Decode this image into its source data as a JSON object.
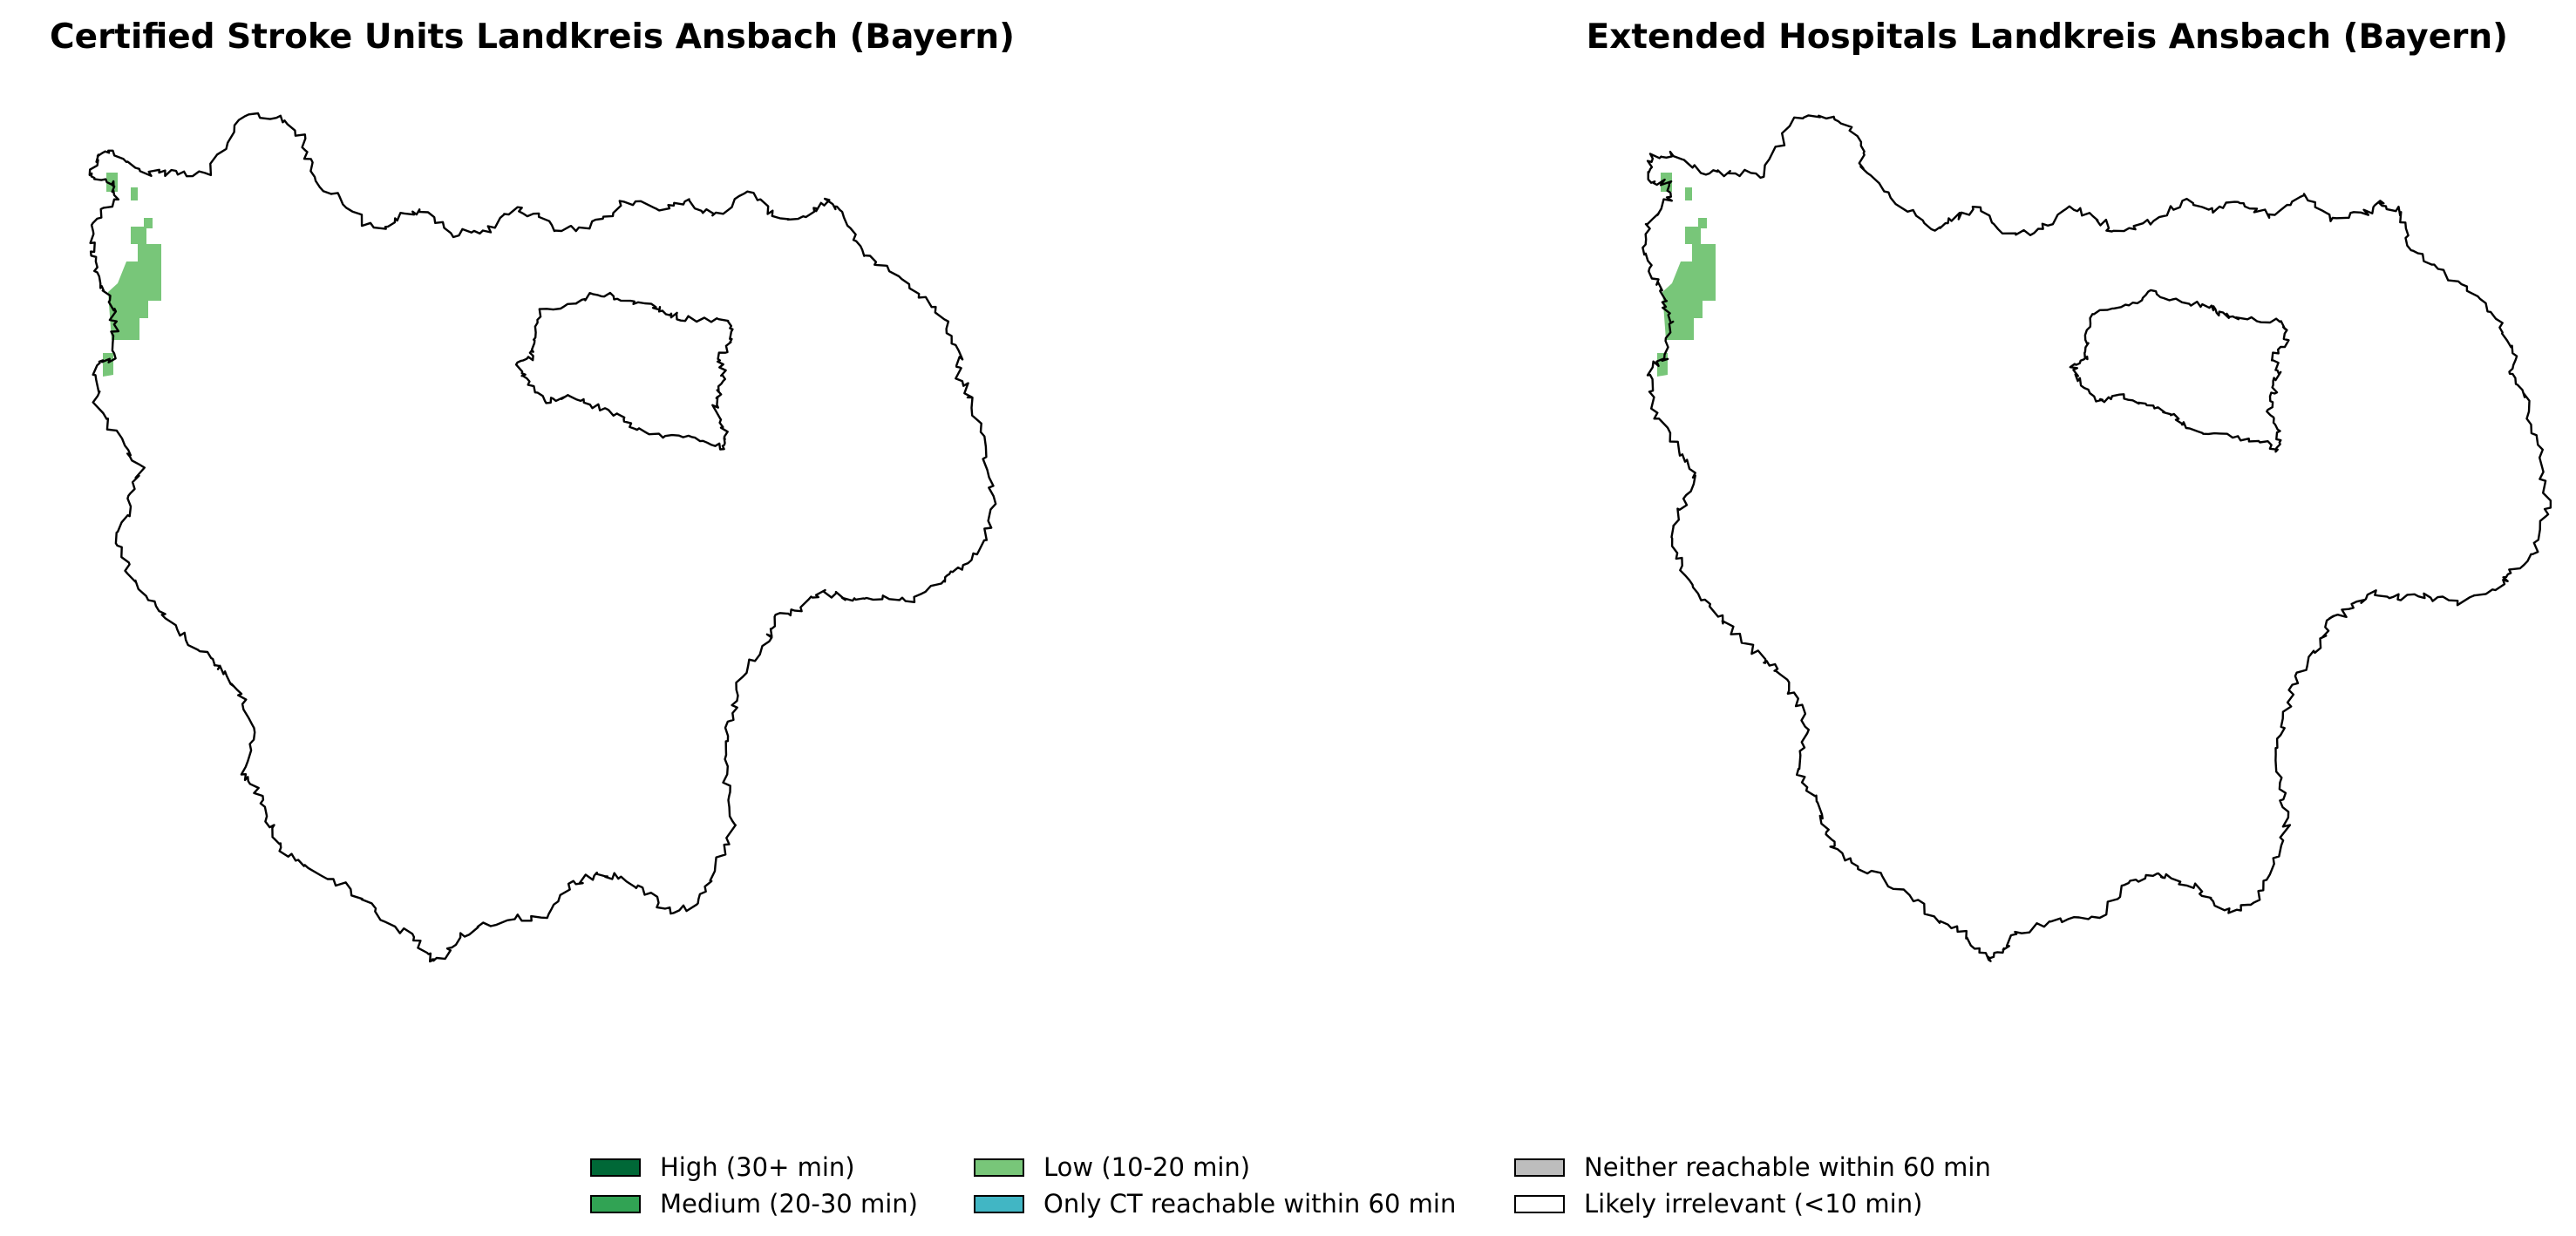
{
  "maps": [
    {
      "title": "Certified Stroke Units Landkreis Ansbach (Bayern)",
      "low_coverage_cells": [
        "nw-1",
        "nw-2",
        "nw-3",
        "nw-4",
        "nw-5"
      ]
    },
    {
      "title": "Extended Hospitals Landkreis Ansbach (Bayern)",
      "low_coverage_cells": [
        "nw-1",
        "nw-2",
        "nw-3",
        "nw-4",
        "nw-5"
      ]
    }
  ],
  "legend": {
    "items": [
      {
        "label": "High (30+ min)",
        "color": "#006837"
      },
      {
        "label": "Medium (20-30 min)",
        "color": "#31a354"
      },
      {
        "label": "Low (10-20 min)",
        "color": "#78c679"
      },
      {
        "label": "Only CT reachable within 60 min",
        "color": "#41b6c4"
      },
      {
        "label": "Neither reachable within 60 min",
        "color": "#bdbdbd"
      },
      {
        "label": "Likely irrelevant (<10 min)",
        "color": "#ffffff"
      }
    ]
  },
  "colors": {
    "outline": "#000000",
    "low_fill": "#78c679"
  }
}
